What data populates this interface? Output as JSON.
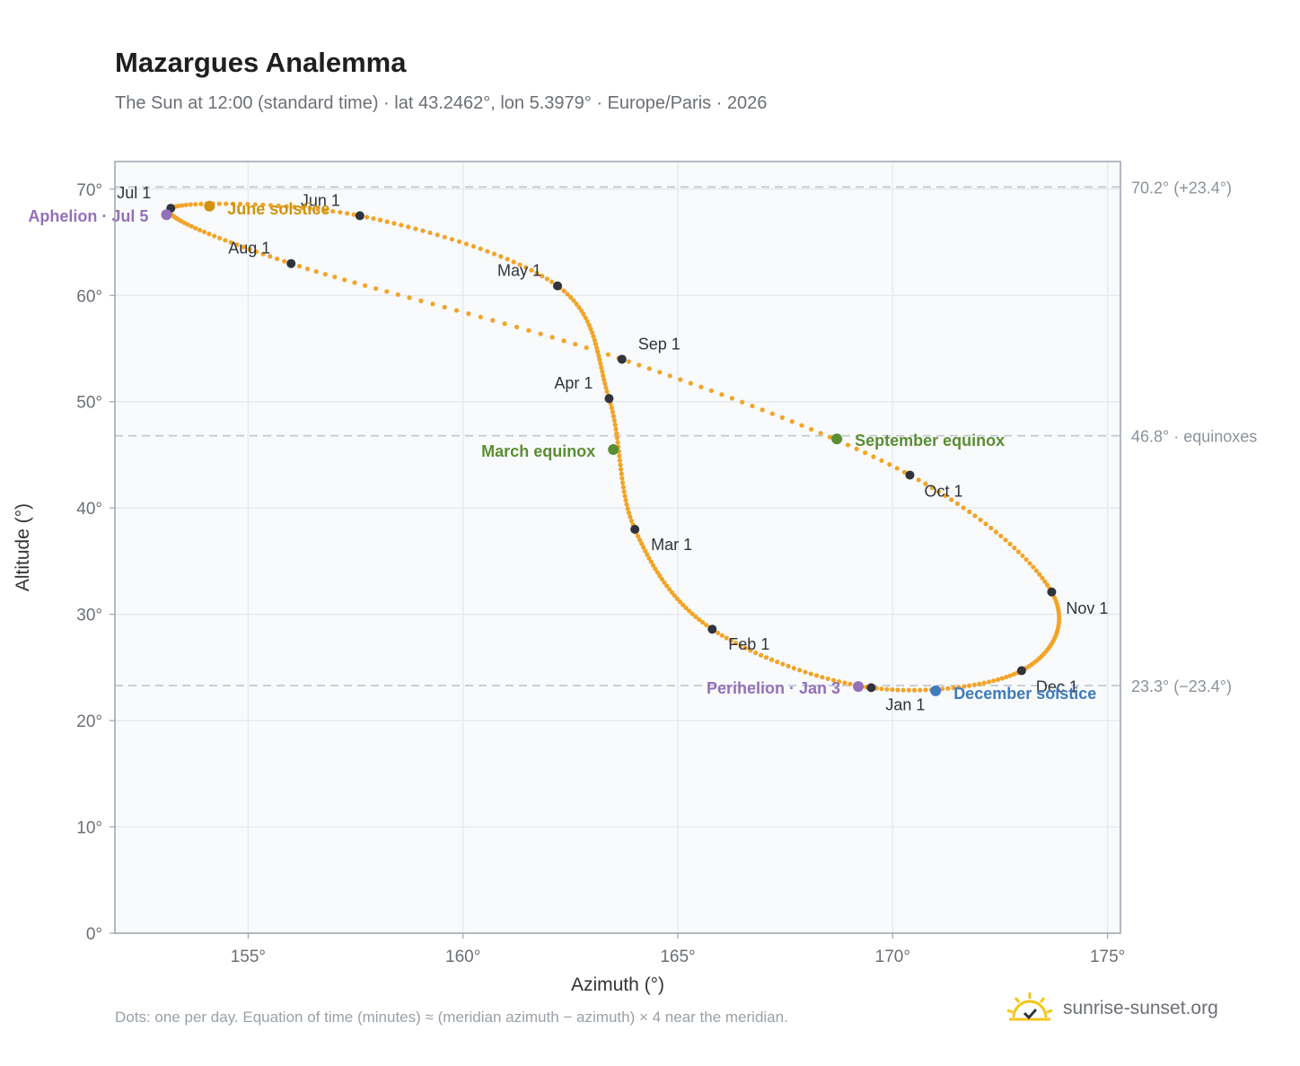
{
  "title": "Mazargues Analemma",
  "subtitle": "The Sun at 12:00 (standard time) · lat 43.2462°, lon 5.3979° · Europe/Paris · 2026",
  "footnote": "Dots: one per day. Equation of time (minutes) ≈ (meridian azimuth − azimuth) × 4 near the meridian.",
  "brand": {
    "text": "sunrise-sunset.org",
    "icon": "sun-logo-icon"
  },
  "colors": {
    "curve": "#f2a428",
    "month_marker": "#2f343d",
    "june_solstice": "#d1920e",
    "december_solstice": "#3f7bbf",
    "equinox": "#5a8e32",
    "apsis": "#9370b8",
    "plot_bg": "#f8fafc",
    "grid": "#e6ebf1",
    "ref_line": "#c3c9d1",
    "axis_text": "#6b6f76"
  },
  "chart_data": {
    "type": "scatter",
    "title": "Mazargues Analemma",
    "xlabel": "Azimuth (°)",
    "ylabel": "Altitude (°)",
    "xlim": [
      151.9,
      175.3
    ],
    "ylim": [
      0,
      72.6
    ],
    "xticks": [
      155,
      160,
      165,
      170,
      175
    ],
    "xtick_labels": [
      "155°",
      "160°",
      "165°",
      "170°",
      "175°"
    ],
    "yticks": [
      0,
      10,
      20,
      30,
      40,
      50,
      60,
      70
    ],
    "ytick_labels": [
      "0°",
      "10°",
      "20°",
      "30°",
      "40°",
      "50°",
      "60°",
      "70°"
    ],
    "grid": true,
    "series": [
      {
        "points_per_year": 365,
        "months": [
          {
            "label": "Jan 1",
            "x": 169.5,
            "y": 23.1
          },
          {
            "label": "Feb 1",
            "x": 165.8,
            "y": 28.6
          },
          {
            "label": "Mar 1",
            "x": 164.0,
            "y": 38.0
          },
          {
            "label": "Apr 1",
            "x": 163.4,
            "y": 50.3
          },
          {
            "label": "May 1",
            "x": 162.2,
            "y": 60.9
          },
          {
            "label": "Jun 1",
            "x": 157.6,
            "y": 67.5
          },
          {
            "label": "Jul 1",
            "x": 153.2,
            "y": 68.2
          },
          {
            "label": "Aug 1",
            "x": 156.0,
            "y": 63.0
          },
          {
            "label": "Sep 1",
            "x": 163.7,
            "y": 54.0
          },
          {
            "label": "Oct 1",
            "x": 170.4,
            "y": 43.1
          },
          {
            "label": "Nov 1",
            "x": 173.7,
            "y": 32.1
          },
          {
            "label": "Dec 1",
            "x": 173.0,
            "y": 24.7
          }
        ]
      }
    ],
    "events": [
      {
        "label": "June solstice",
        "x": 154.1,
        "y": 68.4,
        "color_key": "june_solstice"
      },
      {
        "label": "December solstice",
        "x": 171.0,
        "y": 22.8,
        "color_key": "december_solstice"
      },
      {
        "label": "March equinox",
        "x": 163.5,
        "y": 45.5,
        "color_key": "equinox"
      },
      {
        "label": "September equinox",
        "x": 168.7,
        "y": 46.5,
        "color_key": "equinox"
      },
      {
        "label": "Aphelion · Jul 5",
        "x": 153.1,
        "y": 67.6,
        "color_key": "apsis"
      },
      {
        "label": "Perihelion · Jan 3",
        "x": 169.2,
        "y": 23.2,
        "color_key": "apsis"
      }
    ],
    "reference_lines": [
      {
        "y": 70.2,
        "label": "70.2° (+23.4°)"
      },
      {
        "y": 46.8,
        "label": "46.8° · equinoxes"
      },
      {
        "y": 23.3,
        "label": "23.3° (−23.4°)"
      }
    ]
  }
}
